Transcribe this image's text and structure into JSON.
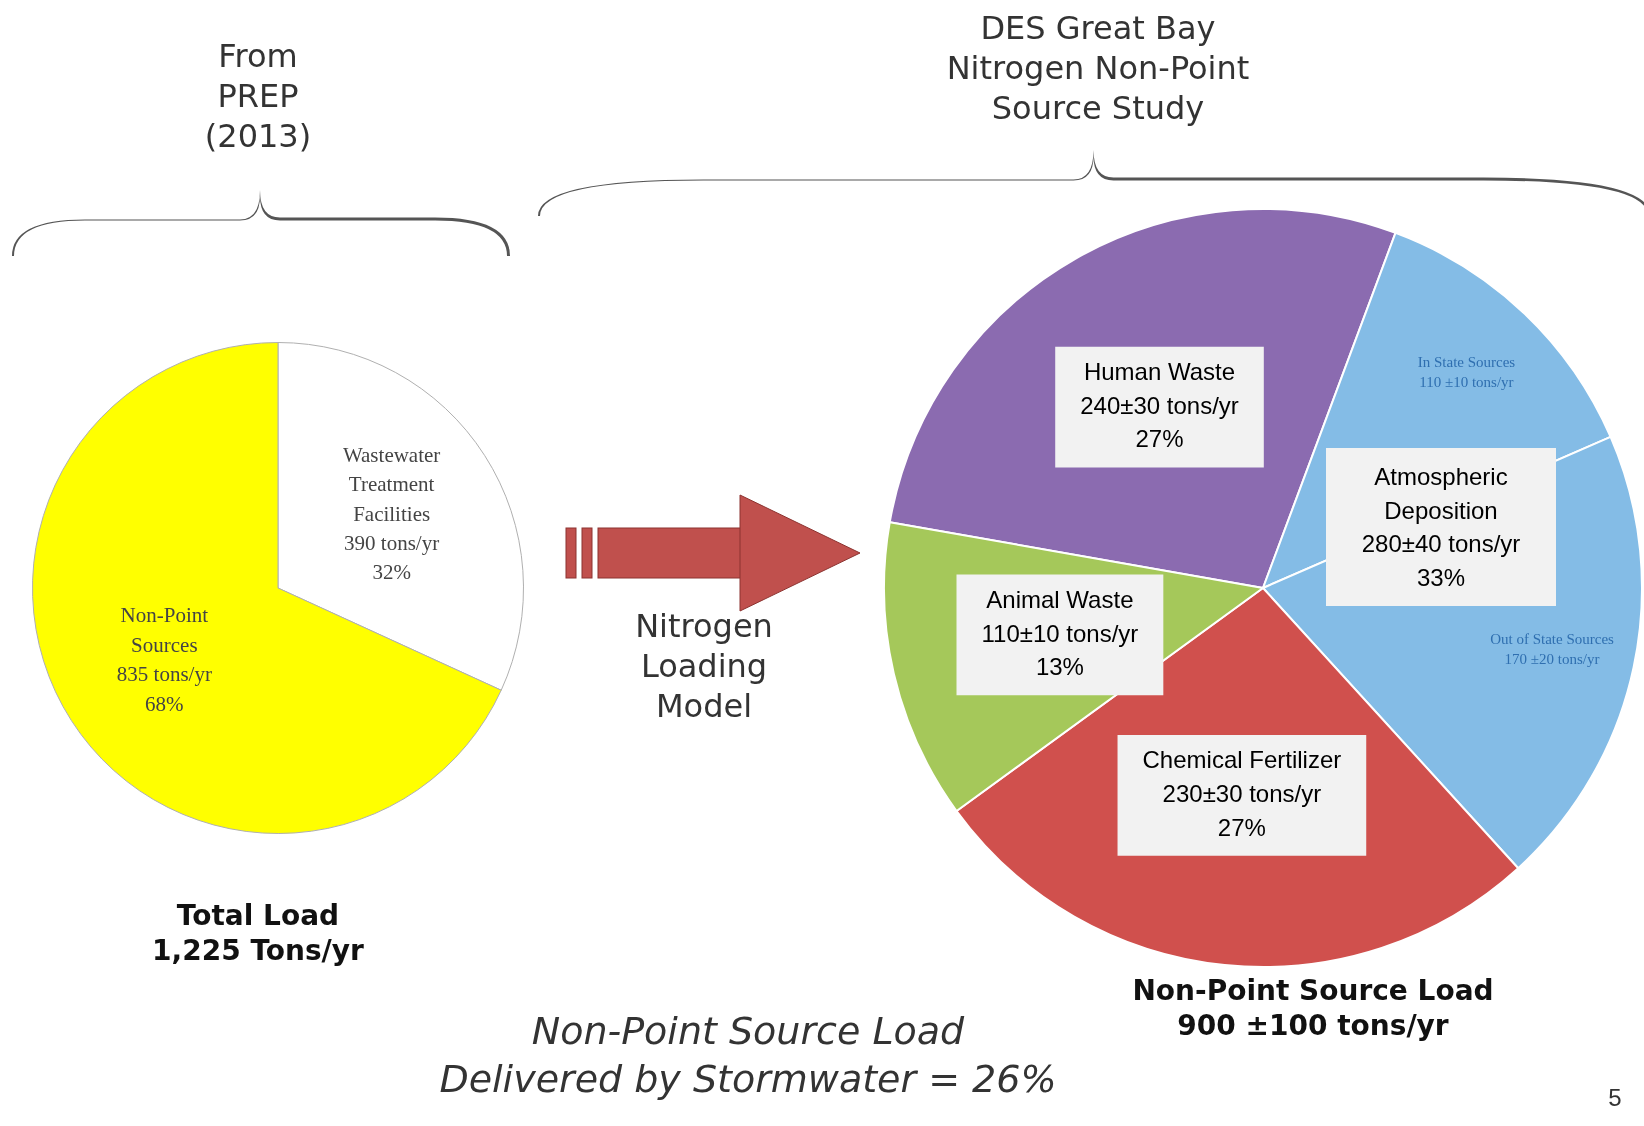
{
  "chart_data": [
    {
      "type": "pie",
      "title": "From\nPREP\n(2013)",
      "xlabel": "Total Load\n1,225 Tons/yr",
      "categories": [
        "Wastewater\nTreatment\nFacilities",
        "Non-Point\nSources"
      ],
      "values": [
        390,
        835
      ],
      "colors": [
        "#ffffff",
        "#ffff00"
      ],
      "value_labels": [
        "390 tons/yr\n32%",
        "835 tons/yr\n68%"
      ],
      "legend": false
    },
    {
      "type": "pie",
      "title": "DES Great Bay\nNitrogen Non-Point\nSource Study",
      "xlabel": "Non-Point Source Load\n900 ±100 tons/yr",
      "categories": [
        "Human Waste",
        "In State Sources",
        "Out of State Sources",
        "Chemical Fertilizer",
        "Animal Waste"
      ],
      "values": [
        240,
        110,
        170,
        230,
        110
      ],
      "colors": [
        "#8b6bb0",
        "#84bce6",
        "#84bce6",
        "#d0504d",
        "#a5c85a"
      ],
      "value_labels": [
        "240±30 tons/yr\n27%",
        "110 ±10 tons/yr",
        "170 ±20 tons/yr",
        "230±30 tons/yr\n27%",
        "110±10 tons/yr\n13%"
      ],
      "annotations": [
        "Atmospheric\nDeposition\n280±40 tons/yr\n33%",
        "Nitrogen\nLoading\nModel",
        "Non-Point Source Load\nDelivered by Stormwater = 26%",
        "5"
      ],
      "legend": false
    }
  ]
}
